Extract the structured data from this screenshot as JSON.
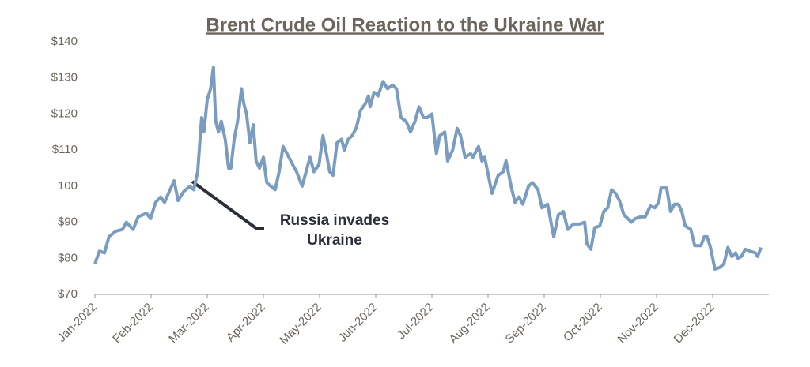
{
  "chart_data": {
    "type": "line",
    "title": "Brent Crude Oil Reaction to the Ukraine War",
    "annotation": [
      "Russia invades",
      "Ukraine"
    ],
    "xlim": [
      0,
      12
    ],
    "xticks": [
      {
        "value": 0,
        "label": "Jan-2022"
      },
      {
        "value": 1,
        "label": "Feb-2022"
      },
      {
        "value": 2,
        "label": "Mar-2022"
      },
      {
        "value": 3,
        "label": "Apr-2022"
      },
      {
        "value": 4,
        "label": "May-2022"
      },
      {
        "value": 5,
        "label": "Jun-2022"
      },
      {
        "value": 6,
        "label": "Jul-2022"
      },
      {
        "value": 7,
        "label": "Aug-2022"
      },
      {
        "value": 8,
        "label": "Sep-2022"
      },
      {
        "value": 9,
        "label": "Oct-2022"
      },
      {
        "value": 10,
        "label": "Nov-2022"
      },
      {
        "value": 11,
        "label": "Dec-2022"
      }
    ],
    "ylim": [
      70,
      140
    ],
    "yticks": [
      {
        "value": 70,
        "label": "$70"
      },
      {
        "value": 80,
        "label": "$80"
      },
      {
        "value": 90,
        "label": "$90"
      },
      {
        "value": 100,
        "label": "100"
      },
      {
        "value": 110,
        "label": "$110"
      },
      {
        "value": 120,
        "label": "$120"
      },
      {
        "value": 130,
        "label": "$130"
      },
      {
        "value": 140,
        "label": "$140"
      }
    ],
    "grid": false,
    "x": [
      0,
      0.08,
      0.17,
      0.25,
      0.37,
      0.49,
      0.56,
      0.68,
      0.77,
      0.92,
      0.99,
      1.08,
      1.17,
      1.24,
      1.31,
      1.41,
      1.48,
      1.58,
      1.69,
      1.76,
      1.83,
      1.9,
      1.94,
      2.0,
      2.06,
      2.11,
      2.15,
      2.2,
      2.25,
      2.32,
      2.38,
      2.42,
      2.48,
      2.54,
      2.61,
      2.65,
      2.7,
      2.76,
      2.82,
      2.87,
      2.93,
      3.0,
      3.06,
      3.13,
      3.21,
      3.28,
      3.35,
      3.42,
      3.52,
      3.59,
      3.69,
      3.76,
      3.83,
      3.9,
      3.99,
      4.06,
      4.11,
      4.18,
      4.24,
      4.31,
      4.39,
      4.44,
      4.51,
      4.58,
      4.65,
      4.73,
      4.82,
      4.87,
      4.9,
      4.97,
      5.04,
      5.13,
      5.21,
      5.3,
      5.37,
      5.45,
      5.54,
      5.62,
      5.7,
      5.77,
      5.85,
      5.92,
      6.0,
      6.08,
      6.14,
      6.23,
      6.28,
      6.37,
      6.45,
      6.51,
      6.59,
      6.69,
      6.73,
      6.83,
      6.89,
      6.94,
      7.07,
      7.18,
      7.27,
      7.32,
      7.41,
      7.48,
      7.55,
      7.62,
      7.72,
      7.79,
      7.89,
      7.96,
      8.06,
      8.17,
      8.25,
      8.34,
      8.42,
      8.52,
      8.63,
      8.72,
      8.76,
      8.83,
      8.9,
      8.99,
      9.06,
      9.13,
      9.2,
      9.27,
      9.34,
      9.42,
      9.49,
      9.55,
      9.62,
      9.72,
      9.8,
      9.89,
      9.97,
      10.04,
      10.08,
      10.18,
      10.25,
      10.32,
      10.39,
      10.45,
      10.51,
      10.61,
      10.68,
      10.79,
      10.85,
      10.9,
      10.96,
      11.04,
      11.13,
      11.2,
      11.27,
      11.34,
      11.41,
      11.45,
      11.51,
      11.58,
      11.66,
      11.76,
      11.8,
      11.86
    ],
    "series": [
      {
        "color": "#7a9cc1",
        "values": [
          78.5,
          82,
          81.5,
          86,
          87.5,
          88,
          90,
          88,
          91.5,
          92.5,
          91,
          95.5,
          97,
          95.5,
          98,
          101.5,
          96,
          98.5,
          100,
          99,
          104,
          119,
          115,
          124,
          127,
          133,
          118,
          115,
          118,
          113,
          105,
          105,
          113,
          118,
          127,
          123,
          120,
          112,
          117,
          107,
          105,
          108,
          101,
          100,
          99,
          104,
          111,
          109,
          106,
          104,
          100,
          104,
          108,
          104,
          106,
          114,
          110,
          104,
          103,
          112,
          113,
          110,
          113,
          114,
          116,
          121,
          123,
          125,
          122,
          126,
          125,
          129,
          127,
          128,
          127,
          119,
          118,
          115,
          118,
          122,
          119,
          119,
          120,
          109,
          114,
          115,
          107,
          110,
          116,
          114,
          108,
          109,
          108,
          111,
          107,
          108,
          98,
          103,
          104,
          107,
          100,
          95.5,
          97,
          95,
          100,
          101,
          99,
          94,
          95,
          86,
          92,
          93,
          88,
          89.5,
          89.5,
          90,
          84,
          82.5,
          88.5,
          89,
          93,
          94,
          99,
          98,
          96,
          92,
          91,
          90,
          91,
          91.5,
          91.5,
          94.5,
          94,
          95.5,
          99.5,
          99.5,
          93,
          95,
          95,
          93,
          89,
          88,
          83.5,
          83.5,
          86,
          86,
          83,
          77,
          77.5,
          78.5,
          83,
          80.5,
          81.5,
          80,
          80.5,
          82.5,
          82,
          81.5,
          80.5,
          83
        ]
      }
    ]
  }
}
